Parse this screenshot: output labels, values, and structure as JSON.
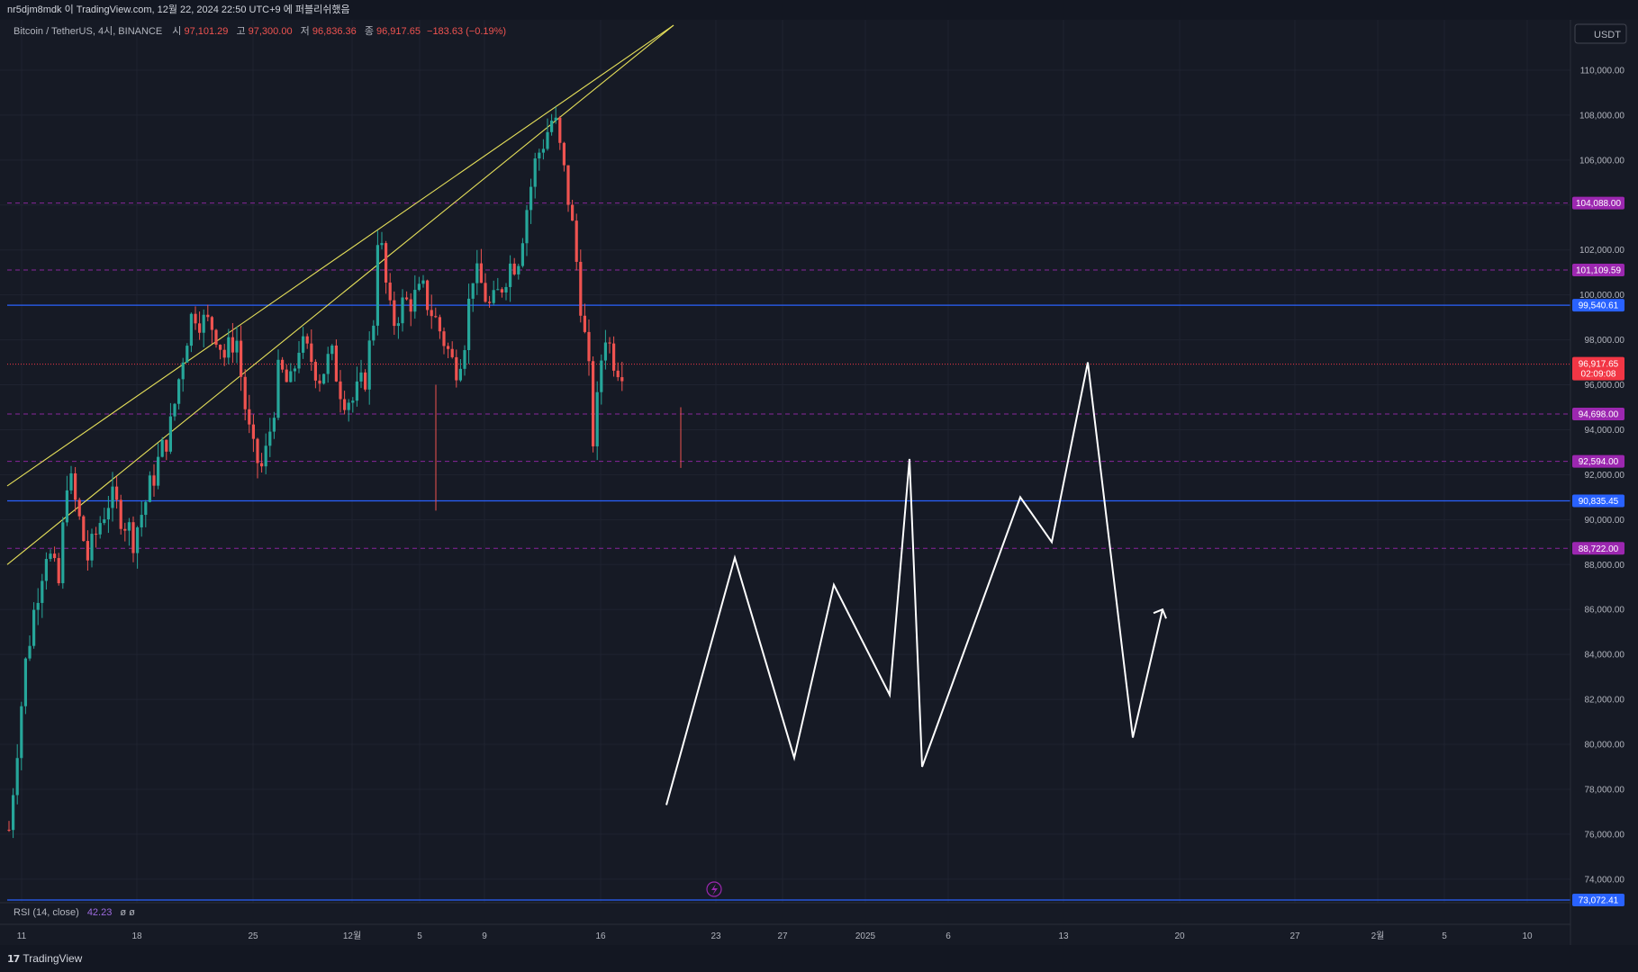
{
  "header": {
    "publish_line": "nr5djm8mdk 이 TradingView.com, 12월 22, 2024 22:50 UTC+9 에 퍼블리쉬했음"
  },
  "legend": {
    "symbol": "Bitcoin / TetherUS, 4시, BINANCE",
    "open_label": "시",
    "open": "97,101.29",
    "high_label": "고",
    "high": "97,300.00",
    "low_label": "저",
    "low": "96,836.36",
    "close_label": "종",
    "close": "96,917.65",
    "change": "−183.63 (−0.19%)"
  },
  "currency": "USDT",
  "rsi_label": "RSI (14, close)",
  "rsi_value": "42.23",
  "rsi_extra": "ø  ø",
  "brand": "TradingView",
  "colors": {
    "background": "#161a25",
    "up": "#26a69a",
    "down": "#ef5350",
    "trendline": "#e6e05a",
    "blue_level": "#2962ff",
    "purple_level": "#9c27b0",
    "price_tag": "#f23645"
  },
  "chart_data": {
    "type": "candlestick",
    "symbol": "BTCUSDT",
    "interval": "4H",
    "y_ticks": [
      74000,
      76000,
      78000,
      80000,
      82000,
      84000,
      86000,
      88000,
      90000,
      92000,
      94000,
      96000,
      98000,
      100000,
      102000,
      104000,
      106000,
      108000,
      110000
    ],
    "ylim": [
      72500,
      112200
    ],
    "x_ticks": [
      "11",
      "18",
      "25",
      "12월",
      "5",
      "9",
      "16",
      "23",
      "27",
      "2025",
      "6",
      "13",
      "20",
      "27",
      "2월",
      "5",
      "10"
    ],
    "candle_path": [
      [
        0,
        76200
      ],
      [
        8,
        79500
      ],
      [
        18,
        83500
      ],
      [
        30,
        86500
      ],
      [
        42,
        88800
      ],
      [
        55,
        87000
      ],
      [
        65,
        92200
      ],
      [
        75,
        90500
      ],
      [
        88,
        88200
      ],
      [
        100,
        89800
      ],
      [
        112,
        91000
      ],
      [
        125,
        90200
      ],
      [
        138,
        89200
      ],
      [
        150,
        90600
      ],
      [
        165,
        92500
      ],
      [
        180,
        94200
      ],
      [
        195,
        97800
      ],
      [
        205,
        99400
      ],
      [
        215,
        98800
      ],
      [
        228,
        98600
      ],
      [
        240,
        97200
      ],
      [
        252,
        98300
      ],
      [
        260,
        95600
      ],
      [
        270,
        93000
      ],
      [
        282,
        92200
      ],
      [
        292,
        94500
      ],
      [
        300,
        96700
      ],
      [
        312,
        95800
      ],
      [
        322,
        97800
      ],
      [
        335,
        97200
      ],
      [
        345,
        96400
      ],
      [
        358,
        97300
      ],
      [
        370,
        95600
      ],
      [
        382,
        95300
      ],
      [
        395,
        96200
      ],
      [
        405,
        99000
      ],
      [
        410,
        103200
      ],
      [
        418,
        100600
      ],
      [
        425,
        98600
      ],
      [
        435,
        99500
      ],
      [
        448,
        99800
      ],
      [
        460,
        100100
      ],
      [
        470,
        99200
      ],
      [
        482,
        98100
      ],
      [
        495,
        96700
      ],
      [
        505,
        97800
      ],
      [
        515,
        101000
      ],
      [
        525,
        100400
      ],
      [
        535,
        99300
      ],
      [
        545,
        100200
      ],
      [
        555,
        101300
      ],
      [
        565,
        101600
      ],
      [
        575,
        103900
      ],
      [
        585,
        106000
      ],
      [
        595,
        107000
      ],
      [
        605,
        108000
      ],
      [
        612,
        106400
      ],
      [
        620,
        104600
      ],
      [
        628,
        102300
      ],
      [
        636,
        99300
      ],
      [
        644,
        96400
      ],
      [
        650,
        92800
      ],
      [
        655,
        96400
      ],
      [
        662,
        98400
      ],
      [
        670,
        97300
      ],
      [
        678,
        96800
      ],
      [
        684,
        96917.65
      ]
    ],
    "horizontal_levels": [
      {
        "value": 99540.61,
        "label": "99,540.61",
        "style": "solid-blue"
      },
      {
        "value": 90835.45,
        "label": "90,835.45",
        "style": "solid-blue"
      },
      {
        "value": 73072.41,
        "label": "73,072.41",
        "style": "solid-blue"
      },
      {
        "value": 104088.0,
        "label": "104,088.00",
        "style": "dashed-purple"
      },
      {
        "value": 101109.59,
        "label": "101,109.59",
        "style": "dashed-purple"
      },
      {
        "value": 94698.0,
        "label": "94,698.00",
        "style": "dashed-purple"
      },
      {
        "value": 92594.0,
        "label": "92,594.00",
        "style": "dashed-purple"
      },
      {
        "value": 88722.0,
        "label": "88,722.00",
        "style": "dashed-purple"
      }
    ],
    "current_price": {
      "value": 96917.65,
      "label": "96,917.65",
      "countdown": "02:09:08"
    },
    "trendlines": [
      [
        [
          0,
          91500
        ],
        [
          740,
          112000
        ]
      ],
      [
        [
          0,
          88000
        ],
        [
          740,
          112000
        ]
      ]
    ],
    "projection_path": [
      [
        732,
        77300
      ],
      [
        808,
        88300
      ],
      [
        874,
        79400
      ],
      [
        918,
        87100
      ],
      [
        980,
        82200
      ],
      [
        1002,
        92700
      ],
      [
        1016,
        79000
      ],
      [
        1125,
        91000
      ],
      [
        1160,
        89000
      ],
      [
        1200,
        97000
      ],
      [
        1250,
        80300
      ],
      [
        1283,
        86000
      ]
    ]
  }
}
